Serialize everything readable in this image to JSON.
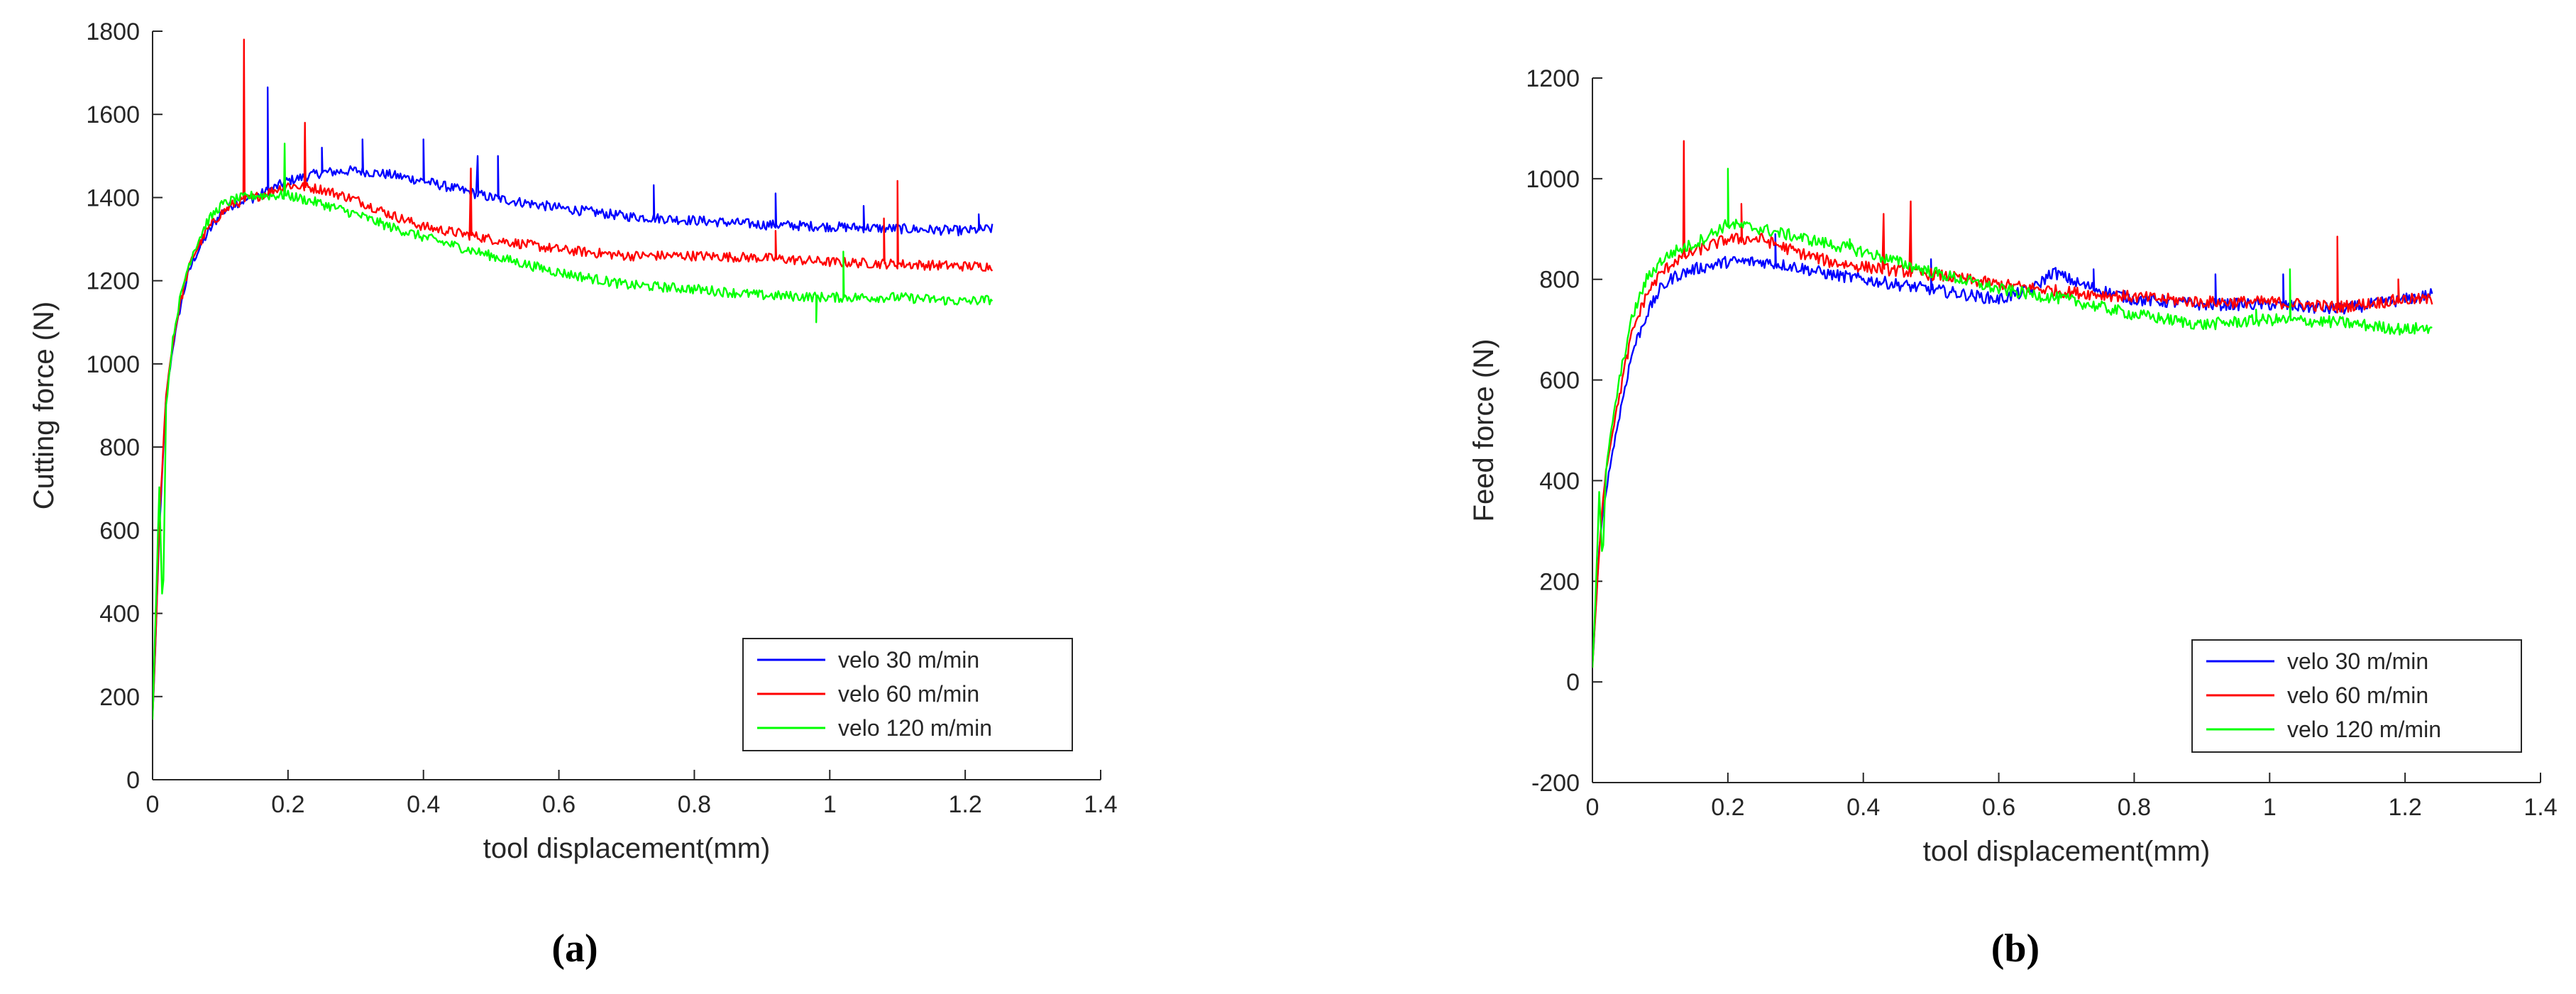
{
  "chart_data": [
    {
      "type": "line",
      "panel_label": "(a)",
      "xlabel": "tool displacement(mm)",
      "ylabel": "Cutting force (N)",
      "xlim": [
        0,
        1.4
      ],
      "ylim": [
        0,
        1800
      ],
      "xticks": [
        0,
        0.2,
        0.4,
        0.6,
        0.8,
        1,
        1.2,
        1.4
      ],
      "xtick_labels": [
        "0",
        "0.2",
        "0.4",
        "0.6",
        "0.8",
        "1",
        "1.2",
        "1.4"
      ],
      "yticks": [
        0,
        200,
        400,
        600,
        800,
        1000,
        1200,
        1400,
        1600,
        1800
      ],
      "ytick_labels": [
        "0",
        "200",
        "400",
        "600",
        "800",
        "1000",
        "1200",
        "1400",
        "1600",
        "1800"
      ],
      "legend_position": "bottom-right",
      "series": [
        {
          "name": "velo 30 m/min",
          "color": "#0000ff",
          "x": [
            0,
            0.005,
            0.01,
            0.02,
            0.03,
            0.04,
            0.05,
            0.06,
            0.08,
            0.1,
            0.12,
            0.15,
            0.2,
            0.25,
            0.3,
            0.35,
            0.4,
            0.5,
            0.6,
            0.7,
            0.8,
            0.9,
            1.0,
            1.1,
            1.2,
            1.24
          ],
          "y": [
            150,
            350,
            600,
            920,
            1040,
            1130,
            1200,
            1250,
            1310,
            1360,
            1385,
            1400,
            1440,
            1460,
            1465,
            1455,
            1440,
            1400,
            1375,
            1355,
            1345,
            1335,
            1330,
            1325,
            1320,
            1325
          ],
          "spikes": [
            [
              0.17,
              1665
            ],
            [
              0.25,
              1520
            ],
            [
              0.31,
              1540
            ],
            [
              0.4,
              1540
            ],
            [
              0.48,
              1500
            ],
            [
              0.51,
              1500
            ],
            [
              0.74,
              1430
            ],
            [
              0.92,
              1410
            ],
            [
              1.05,
              1380
            ],
            [
              1.22,
              1360
            ]
          ]
        },
        {
          "name": "velo 60 m/min",
          "color": "#ff0000",
          "x": [
            0,
            0.005,
            0.01,
            0.02,
            0.03,
            0.04,
            0.05,
            0.06,
            0.08,
            0.1,
            0.12,
            0.15,
            0.2,
            0.25,
            0.3,
            0.35,
            0.4,
            0.5,
            0.6,
            0.7,
            0.8,
            0.9,
            1.0,
            1.1,
            1.2,
            1.24
          ],
          "y": [
            150,
            360,
            620,
            930,
            1050,
            1140,
            1210,
            1260,
            1320,
            1360,
            1385,
            1400,
            1430,
            1420,
            1395,
            1360,
            1330,
            1300,
            1275,
            1260,
            1260,
            1255,
            1245,
            1240,
            1235,
            1235
          ],
          "spikes": [
            [
              0.135,
              1780
            ],
            [
              0.225,
              1580
            ],
            [
              0.47,
              1470
            ],
            [
              0.92,
              1320
            ],
            [
              1.1,
              1440
            ],
            [
              1.08,
              1350
            ]
          ]
        },
        {
          "name": "velo 120 m/min",
          "color": "#00ff00",
          "x": [
            0,
            0.005,
            0.01,
            0.015,
            0.02,
            0.03,
            0.04,
            0.05,
            0.06,
            0.08,
            0.1,
            0.12,
            0.15,
            0.2,
            0.25,
            0.3,
            0.35,
            0.4,
            0.5,
            0.6,
            0.7,
            0.8,
            0.9,
            1.0,
            1.1,
            1.2,
            1.24
          ],
          "y": [
            150,
            420,
            700,
            380,
            900,
            1060,
            1150,
            1220,
            1270,
            1340,
            1380,
            1395,
            1405,
            1405,
            1385,
            1360,
            1330,
            1305,
            1260,
            1220,
            1190,
            1180,
            1165,
            1160,
            1160,
            1150,
            1155
          ],
          "spikes": [
            [
              0.195,
              1530
            ],
            [
              0.98,
              1100
            ],
            [
              1.02,
              1270
            ]
          ]
        }
      ]
    },
    {
      "type": "line",
      "panel_label": "(b)",
      "xlabel": "tool displacement(mm)",
      "ylabel": "Feed force (N)",
      "xlim": [
        0,
        1.4
      ],
      "ylim": [
        -200,
        1200
      ],
      "xticks": [
        0,
        0.2,
        0.4,
        0.6,
        0.8,
        1,
        1.2,
        1.4
      ],
      "xtick_labels": [
        "0",
        "0.2",
        "0.4",
        "0.6",
        "0.8",
        "1",
        "1.2",
        "1.4"
      ],
      "yticks": [
        -200,
        0,
        200,
        400,
        600,
        800,
        1000,
        1200
      ],
      "ytick_labels": [
        "-200",
        "0",
        "200",
        "400",
        "600",
        "800",
        "1000",
        "1200"
      ],
      "legend_position": "bottom-right",
      "series": [
        {
          "name": "velo 30 m/min",
          "color": "#0000ff",
          "x": [
            0,
            0.005,
            0.01,
            0.015,
            0.02,
            0.03,
            0.04,
            0.05,
            0.06,
            0.08,
            0.1,
            0.12,
            0.15,
            0.2,
            0.25,
            0.3,
            0.35,
            0.4,
            0.5,
            0.6,
            0.65,
            0.68,
            0.72,
            0.8,
            0.9,
            1.0,
            1.1,
            1.2,
            1.24
          ],
          "y": [
            30,
            150,
            260,
            330,
            380,
            460,
            530,
            600,
            660,
            730,
            780,
            805,
            820,
            835,
            835,
            825,
            810,
            800,
            780,
            760,
            780,
            815,
            790,
            760,
            750,
            750,
            740,
            760,
            770
          ],
          "spikes": [
            [
              0.27,
              890
            ],
            [
              0.5,
              840
            ],
            [
              0.74,
              820
            ],
            [
              0.92,
              810
            ],
            [
              1.02,
              810
            ],
            [
              1.1,
              800
            ]
          ]
        },
        {
          "name": "velo 60 m/min",
          "color": "#ff0000",
          "x": [
            0,
            0.005,
            0.01,
            0.015,
            0.02,
            0.03,
            0.04,
            0.05,
            0.06,
            0.08,
            0.1,
            0.12,
            0.15,
            0.2,
            0.25,
            0.3,
            0.35,
            0.4,
            0.5,
            0.6,
            0.7,
            0.8,
            0.9,
            1.0,
            1.1,
            1.2,
            1.24
          ],
          "y": [
            30,
            140,
            260,
            360,
            420,
            500,
            570,
            640,
            700,
            770,
            810,
            835,
            855,
            880,
            880,
            855,
            835,
            825,
            810,
            790,
            775,
            765,
            755,
            755,
            745,
            760,
            760
          ],
          "spikes": [
            [
              0.135,
              1075
            ],
            [
              0.22,
              950
            ],
            [
              0.43,
              930
            ],
            [
              0.47,
              955
            ],
            [
              1.1,
              885
            ],
            [
              1.19,
              800
            ]
          ]
        },
        {
          "name": "velo 120 m/min",
          "color": "#00ff00",
          "x": [
            0,
            0.005,
            0.01,
            0.015,
            0.02,
            0.03,
            0.04,
            0.05,
            0.06,
            0.08,
            0.1,
            0.12,
            0.15,
            0.2,
            0.25,
            0.3,
            0.35,
            0.4,
            0.5,
            0.6,
            0.7,
            0.8,
            0.9,
            1.0,
            1.1,
            1.2,
            1.24
          ],
          "y": [
            30,
            180,
            380,
            230,
            420,
            520,
            600,
            670,
            730,
            800,
            835,
            855,
            870,
            910,
            900,
            885,
            870,
            855,
            815,
            780,
            760,
            730,
            710,
            720,
            715,
            700,
            705
          ],
          "spikes": [
            [
              0.2,
              1020
            ],
            [
              0.38,
              880
            ],
            [
              1.03,
              820
            ],
            [
              0.98,
              740
            ]
          ]
        }
      ]
    }
  ]
}
